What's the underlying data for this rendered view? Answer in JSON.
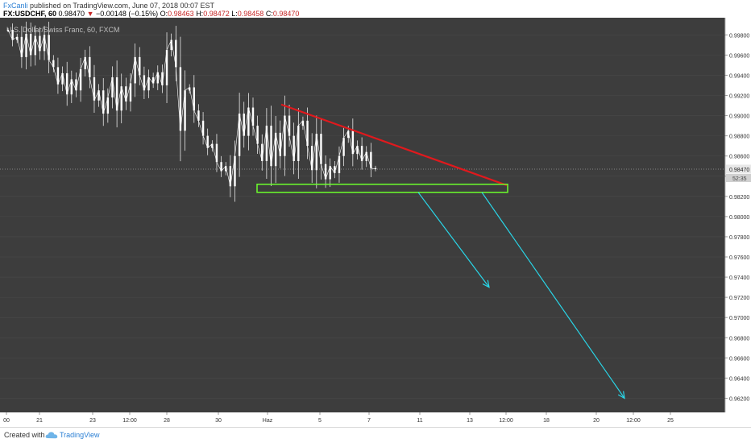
{
  "header": {
    "author": "FxCanli",
    "published": "published on TradingView.com, June 07, 2018 00:07 EST",
    "symbol": "FX:USDCHF, 60",
    "last": "0.98470",
    "change": "−0.00148 (−0.15%)",
    "o_label": "O:",
    "o": "0.98463",
    "h_label": "H:",
    "h": "0.98472",
    "l_label": "L:",
    "l": "0.98458",
    "c_label": "C:",
    "c": "0.98470"
  },
  "chart_data": {
    "type": "line",
    "title": "U.S. Dollar/Swiss Franc, 60, FXCM",
    "series": [
      {
        "values": [
          0.9985,
          0.9975,
          0.9978,
          0.9958,
          0.9981,
          0.996,
          0.9979,
          0.9964,
          0.998,
          0.9955,
          0.9948,
          0.9931,
          0.9942,
          0.9921,
          0.9936,
          0.9925,
          0.9946,
          0.9958,
          0.9938,
          0.9915,
          0.9925,
          0.9902,
          0.9918,
          0.9938,
          0.9905,
          0.9929,
          0.9914,
          0.9932,
          0.9958,
          0.994,
          0.9925,
          0.9938,
          0.9932,
          0.9943,
          0.993,
          0.9965,
          0.9975,
          0.9948,
          0.9885,
          0.9925,
          0.9928,
          0.9905,
          0.9895,
          0.988,
          0.9868,
          0.9872,
          0.9854,
          0.9845,
          0.985,
          0.983,
          0.986,
          0.9902,
          0.988,
          0.9908,
          0.989,
          0.9872,
          0.9855,
          0.989,
          0.985,
          0.9883,
          0.986,
          0.99,
          0.988,
          0.9855,
          0.989,
          0.9895,
          0.987,
          0.9846,
          0.9882,
          0.9852,
          0.9837,
          0.985,
          0.9843,
          0.986,
          0.9878,
          0.9885,
          0.9862,
          0.987,
          0.9855,
          0.9864,
          0.9848,
          0.9847
        ]
      }
    ],
    "x_ticks": [
      "00",
      "21",
      "23",
      "12:00",
      "28",
      "30",
      "Haz",
      "5",
      "7",
      "11",
      "13",
      "12:00",
      "18",
      "20",
      "12:00",
      "25"
    ],
    "y_ticks": [
      "0.99800",
      "0.99600",
      "0.99400",
      "0.99200",
      "0.99000",
      "0.98800",
      "0.98600",
      "0.98400",
      "0.98200",
      "0.98000",
      "0.97800",
      "0.97600",
      "0.97400",
      "0.97200",
      "0.97000",
      "0.96800",
      "0.96600",
      "0.96400",
      "0.96200"
    ],
    "ylim": [
      0.9606,
      0.9997
    ],
    "last_price_label": "0.98470",
    "countdown_label": "52:35",
    "last_price": 0.9847,
    "annotations": {
      "resistance_line": {
        "color": "#e0191d",
        "from": 0.9911,
        "to": 0.9831
      },
      "support_box": {
        "color": "#6cff2c",
        "top": 0.9832,
        "bottom": 0.9824
      },
      "arrow_short": {
        "color": "#29d6e8",
        "from": 0.9824,
        "to": 0.973
      },
      "arrow_long": {
        "color": "#29d6e8",
        "from": 0.9824,
        "to": 0.962
      }
    },
    "colors": {
      "background": "#3d3d3d",
      "candles": "#ffffff",
      "grid": "#4a4a4a",
      "axis_bg": "#ffffff"
    }
  },
  "footer": {
    "created_with": "Created with",
    "brand": "TradingView"
  }
}
